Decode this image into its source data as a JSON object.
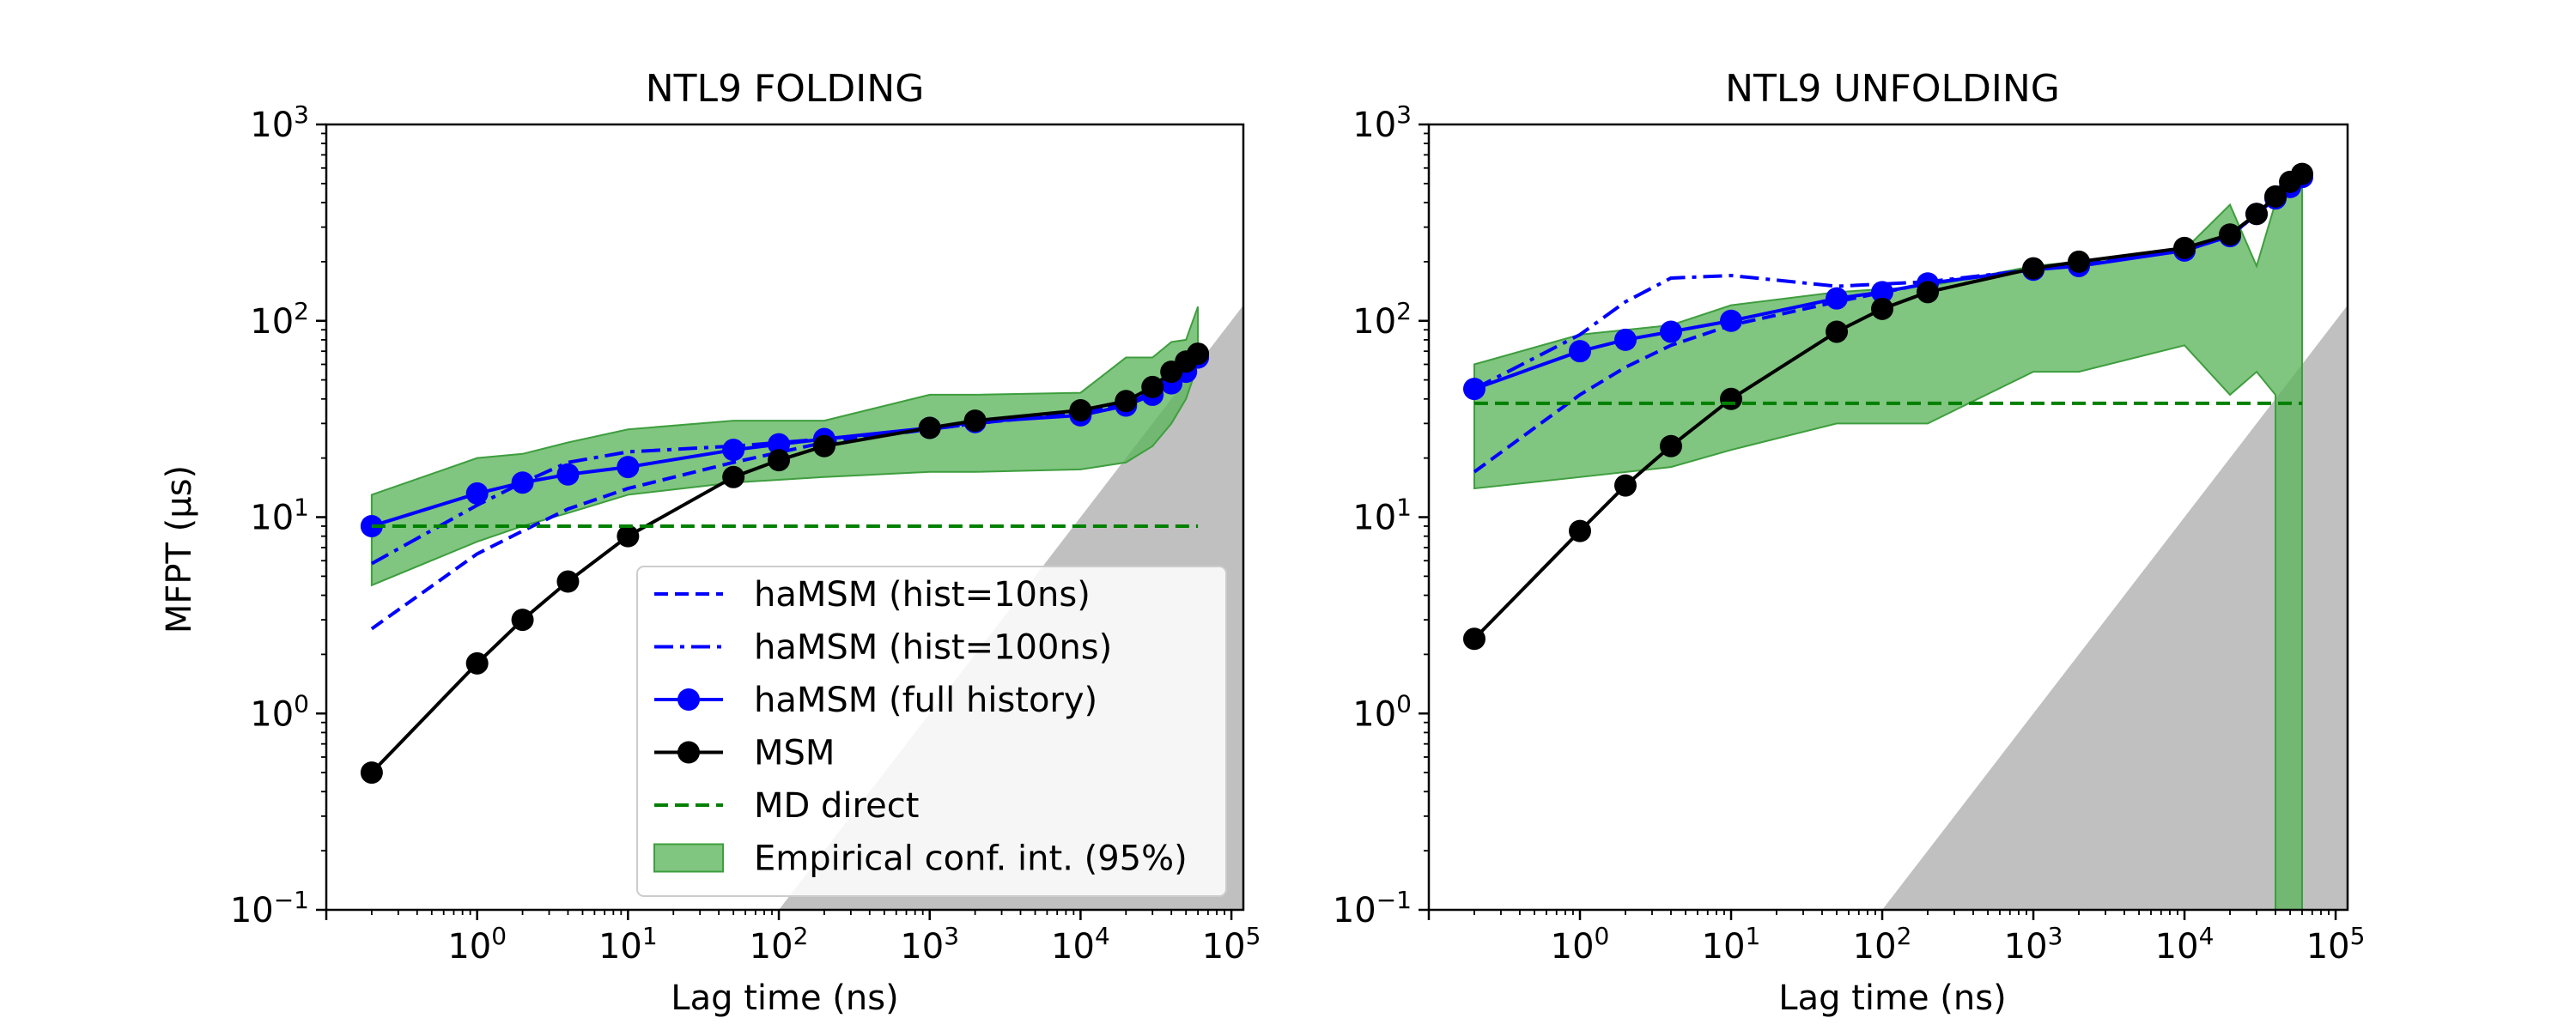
{
  "colors": {
    "hist10": "#0000ff",
    "hist100": "#0000ff",
    "full": "#0000ff",
    "msm": "#000000",
    "md": "#008000",
    "ci_fill": "#5cb55c",
    "ci_edge": "#3e9e3e",
    "gray": "#bdbdbd"
  },
  "legend": {
    "items": [
      {
        "label": "haMSM (hist=10ns)",
        "style": "dashed-blue"
      },
      {
        "label": "haMSM (hist=100ns)",
        "style": "dashdot-blue"
      },
      {
        "label": "haMSM (full history)",
        "style": "line-marker-blue"
      },
      {
        "label": "MSM",
        "style": "line-marker-black"
      },
      {
        "label": "MD direct",
        "style": "dashed-green"
      },
      {
        "label": "Empirical conf. int. (95%)",
        "style": "patch-green"
      }
    ]
  },
  "chart_data": [
    {
      "type": "line",
      "title": "NTL9 FOLDING",
      "xlabel": "Lag time (ns)",
      "ylabel": "MFPT (μs)",
      "xscale": "log",
      "yscale": "log",
      "xlim": [
        0.1,
        120000
      ],
      "ylim": [
        0.1,
        1000
      ],
      "xticks": [
        {
          "value": 1,
          "base": "10",
          "exp": "0"
        },
        {
          "value": 10,
          "base": "10",
          "exp": "1"
        },
        {
          "value": 100,
          "base": "10",
          "exp": "2"
        },
        {
          "value": 1000,
          "base": "10",
          "exp": "3"
        },
        {
          "value": 10000,
          "base": "10",
          "exp": "4"
        },
        {
          "value": 100000,
          "base": "10",
          "exp": "5"
        }
      ],
      "yticks": [
        {
          "value": 0.1,
          "base": "10",
          "exp": "−1"
        },
        {
          "value": 1,
          "base": "10",
          "exp": "0"
        },
        {
          "value": 10,
          "base": "10",
          "exp": "1"
        },
        {
          "value": 100,
          "base": "10",
          "exp": "2"
        },
        {
          "value": 1000,
          "base": "10",
          "exp": "3"
        }
      ],
      "legend_position": "lower-right",
      "gray_region": [
        [
          100,
          0.1
        ],
        [
          120000,
          120
        ],
        [
          120000,
          0.1
        ]
      ],
      "series": [
        {
          "name": "haMSM (hist=10ns)",
          "style": "dashed",
          "x": [
            0.2,
            1,
            2,
            4,
            10,
            50,
            200,
            1000,
            2000,
            10000,
            20000,
            30000,
            40000,
            50000,
            60000
          ],
          "y": [
            2.7,
            6.5,
            8.5,
            11,
            14,
            19,
            24,
            28,
            30,
            34,
            38,
            43,
            48,
            55,
            65
          ]
        },
        {
          "name": "haMSM (hist=100ns)",
          "style": "dashdot",
          "x": [
            0.2,
            1,
            2,
            4,
            10,
            50,
            200,
            1000,
            2000,
            10000,
            20000,
            30000,
            40000,
            50000,
            60000
          ],
          "y": [
            5.8,
            11.5,
            15,
            19,
            21.5,
            23,
            25,
            28,
            30,
            34,
            38,
            43,
            48,
            55,
            65
          ]
        },
        {
          "name": "haMSM (full history)",
          "style": "line-marker",
          "x": [
            0.2,
            1,
            2,
            4,
            10,
            50,
            100,
            200,
            1000,
            2000,
            10000,
            20000,
            30000,
            40000,
            50000,
            60000
          ],
          "y": [
            9,
            13.2,
            15,
            16.5,
            18,
            22,
            23.5,
            25,
            28.5,
            30.5,
            33,
            37,
            42,
            48,
            55,
            65
          ]
        },
        {
          "name": "MSM",
          "style": "line-marker",
          "x": [
            0.2,
            1,
            2,
            4,
            10,
            50,
            100,
            200,
            1000,
            2000,
            10000,
            20000,
            30000,
            40000,
            50000,
            60000
          ],
          "y": [
            0.5,
            1.8,
            3.0,
            4.7,
            8.0,
            16,
            19.5,
            23,
            28.5,
            31,
            35,
            39,
            46,
            55,
            62,
            68
          ]
        },
        {
          "name": "MD direct",
          "style": "dashed",
          "x": [
            0.2,
            60000
          ],
          "y": [
            9,
            9
          ]
        }
      ],
      "confidence_band": {
        "x": [
          0.2,
          1,
          2,
          4,
          10,
          50,
          200,
          1000,
          2000,
          10000,
          20000,
          30000,
          40000,
          50000,
          60000
        ],
        "lower": [
          4.5,
          7.5,
          9,
          10.5,
          13,
          15,
          16,
          17,
          17,
          17.5,
          19,
          23,
          30,
          40,
          60
        ],
        "upper": [
          13,
          20,
          21,
          24,
          28,
          31,
          31,
          42,
          42,
          43,
          65,
          65,
          78,
          80,
          118
        ]
      }
    },
    {
      "type": "line",
      "title": "NTL9 UNFOLDING",
      "xlabel": "Lag time (ns)",
      "ylabel": "",
      "xscale": "log",
      "yscale": "log",
      "xlim": [
        0.1,
        120000
      ],
      "ylim": [
        0.1,
        1000
      ],
      "xticks": [
        {
          "value": 1,
          "base": "10",
          "exp": "0"
        },
        {
          "value": 10,
          "base": "10",
          "exp": "1"
        },
        {
          "value": 100,
          "base": "10",
          "exp": "2"
        },
        {
          "value": 1000,
          "base": "10",
          "exp": "3"
        },
        {
          "value": 10000,
          "base": "10",
          "exp": "4"
        },
        {
          "value": 100000,
          "base": "10",
          "exp": "5"
        }
      ],
      "yticks": [
        {
          "value": 0.1,
          "base": "10",
          "exp": "−1"
        },
        {
          "value": 1,
          "base": "10",
          "exp": "0"
        },
        {
          "value": 10,
          "base": "10",
          "exp": "1"
        },
        {
          "value": 100,
          "base": "10",
          "exp": "2"
        },
        {
          "value": 1000,
          "base": "10",
          "exp": "3"
        }
      ],
      "gray_region": [
        [
          100,
          0.1
        ],
        [
          120000,
          120
        ],
        [
          120000,
          0.1
        ]
      ],
      "series": [
        {
          "name": "haMSM (hist=10ns)",
          "style": "dashed",
          "x": [
            0.2,
            1,
            2,
            4,
            10,
            50,
            200,
            1000,
            2000,
            10000,
            20000,
            40000,
            60000
          ],
          "y": [
            17,
            42,
            58,
            75,
            95,
            125,
            155,
            182,
            192,
            228,
            270,
            420,
            540
          ]
        },
        {
          "name": "haMSM (hist=100ns)",
          "style": "dashdot",
          "x": [
            0.2,
            1,
            2,
            4,
            10,
            50,
            200,
            1000,
            2000,
            10000,
            20000,
            40000,
            60000
          ],
          "y": [
            45,
            85,
            125,
            165,
            170,
            150,
            158,
            182,
            192,
            228,
            270,
            420,
            540
          ]
        },
        {
          "name": "haMSM (full history)",
          "style": "line-marker",
          "x": [
            0.2,
            1,
            2,
            4,
            10,
            50,
            100,
            200,
            1000,
            2000,
            10000,
            20000,
            30000,
            40000,
            50000,
            60000
          ],
          "y": [
            45,
            70,
            80,
            88,
            100,
            130,
            140,
            155,
            182,
            190,
            228,
            270,
            350,
            420,
            480,
            540
          ]
        },
        {
          "name": "MSM",
          "style": "line-marker",
          "x": [
            0.2,
            1,
            2,
            4,
            10,
            50,
            100,
            200,
            1000,
            2000,
            10000,
            20000,
            30000,
            40000,
            50000,
            60000
          ],
          "y": [
            2.4,
            8.5,
            14.5,
            23,
            40,
            88,
            115,
            140,
            185,
            200,
            235,
            275,
            350,
            430,
            510,
            560
          ]
        },
        {
          "name": "MD direct",
          "style": "dashed",
          "x": [
            0.2,
            60000
          ],
          "y": [
            38,
            38
          ]
        }
      ],
      "confidence_band": {
        "x": [
          0.2,
          1,
          4,
          10,
          50,
          200,
          1000,
          2000,
          10000,
          20000,
          30000,
          40000,
          40000.1,
          60000,
          60000.1
        ],
        "lower": [
          14,
          16,
          18,
          22,
          30,
          30,
          55,
          55,
          75,
          42,
          55,
          42,
          0.1,
          0.1,
          0.1
        ],
        "upper": [
          60,
          85,
          95,
          120,
          140,
          150,
          190,
          200,
          230,
          390,
          190,
          400,
          400,
          600,
          120
        ]
      }
    }
  ]
}
